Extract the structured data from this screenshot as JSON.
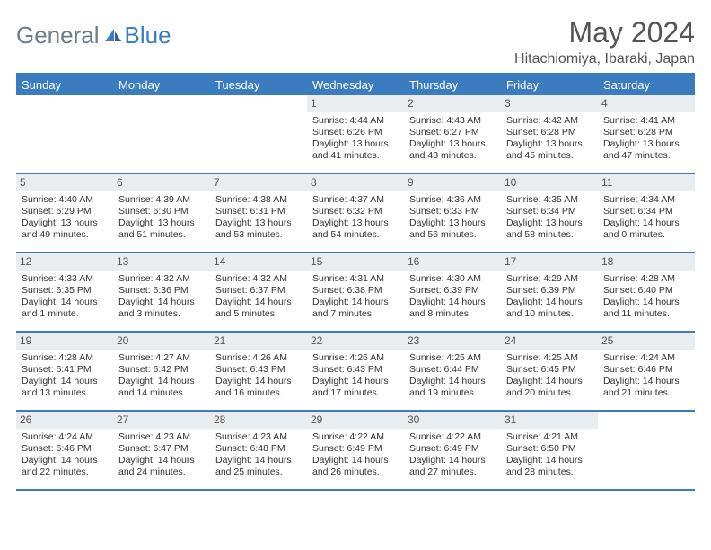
{
  "logo": {
    "part1": "General",
    "part2": "Blue"
  },
  "title": "May 2024",
  "location": "Hitachiomiya, Ibaraki, Japan",
  "colors": {
    "header_bar": "#3b7bbf",
    "dow_text": "#ffffff",
    "daynum_bg": "#e9edf0",
    "rule": "#3b7bbf",
    "body_text": "#333333",
    "title_text": "#555555",
    "logo_grey": "#6b7c8c",
    "logo_blue": "#3b7bbf",
    "background": "#ffffff"
  },
  "typography": {
    "month_title_pt": 32,
    "location_pt": 16,
    "dow_pt": 13,
    "daynum_pt": 12,
    "body_pt": 10.5,
    "logo_pt": 26
  },
  "days_of_week": [
    "Sunday",
    "Monday",
    "Tuesday",
    "Wednesday",
    "Thursday",
    "Friday",
    "Saturday"
  ],
  "weeks": [
    [
      {
        "n": "",
        "sr": "",
        "ss": "",
        "dl": ""
      },
      {
        "n": "",
        "sr": "",
        "ss": "",
        "dl": ""
      },
      {
        "n": "",
        "sr": "",
        "ss": "",
        "dl": ""
      },
      {
        "n": "1",
        "sr": "Sunrise: 4:44 AM",
        "ss": "Sunset: 6:26 PM",
        "dl": "Daylight: 13 hours and 41 minutes."
      },
      {
        "n": "2",
        "sr": "Sunrise: 4:43 AM",
        "ss": "Sunset: 6:27 PM",
        "dl": "Daylight: 13 hours and 43 minutes."
      },
      {
        "n": "3",
        "sr": "Sunrise: 4:42 AM",
        "ss": "Sunset: 6:28 PM",
        "dl": "Daylight: 13 hours and 45 minutes."
      },
      {
        "n": "4",
        "sr": "Sunrise: 4:41 AM",
        "ss": "Sunset: 6:28 PM",
        "dl": "Daylight: 13 hours and 47 minutes."
      }
    ],
    [
      {
        "n": "5",
        "sr": "Sunrise: 4:40 AM",
        "ss": "Sunset: 6:29 PM",
        "dl": "Daylight: 13 hours and 49 minutes."
      },
      {
        "n": "6",
        "sr": "Sunrise: 4:39 AM",
        "ss": "Sunset: 6:30 PM",
        "dl": "Daylight: 13 hours and 51 minutes."
      },
      {
        "n": "7",
        "sr": "Sunrise: 4:38 AM",
        "ss": "Sunset: 6:31 PM",
        "dl": "Daylight: 13 hours and 53 minutes."
      },
      {
        "n": "8",
        "sr": "Sunrise: 4:37 AM",
        "ss": "Sunset: 6:32 PM",
        "dl": "Daylight: 13 hours and 54 minutes."
      },
      {
        "n": "9",
        "sr": "Sunrise: 4:36 AM",
        "ss": "Sunset: 6:33 PM",
        "dl": "Daylight: 13 hours and 56 minutes."
      },
      {
        "n": "10",
        "sr": "Sunrise: 4:35 AM",
        "ss": "Sunset: 6:34 PM",
        "dl": "Daylight: 13 hours and 58 minutes."
      },
      {
        "n": "11",
        "sr": "Sunrise: 4:34 AM",
        "ss": "Sunset: 6:34 PM",
        "dl": "Daylight: 14 hours and 0 minutes."
      }
    ],
    [
      {
        "n": "12",
        "sr": "Sunrise: 4:33 AM",
        "ss": "Sunset: 6:35 PM",
        "dl": "Daylight: 14 hours and 1 minute."
      },
      {
        "n": "13",
        "sr": "Sunrise: 4:32 AM",
        "ss": "Sunset: 6:36 PM",
        "dl": "Daylight: 14 hours and 3 minutes."
      },
      {
        "n": "14",
        "sr": "Sunrise: 4:32 AM",
        "ss": "Sunset: 6:37 PM",
        "dl": "Daylight: 14 hours and 5 minutes."
      },
      {
        "n": "15",
        "sr": "Sunrise: 4:31 AM",
        "ss": "Sunset: 6:38 PM",
        "dl": "Daylight: 14 hours and 7 minutes."
      },
      {
        "n": "16",
        "sr": "Sunrise: 4:30 AM",
        "ss": "Sunset: 6:39 PM",
        "dl": "Daylight: 14 hours and 8 minutes."
      },
      {
        "n": "17",
        "sr": "Sunrise: 4:29 AM",
        "ss": "Sunset: 6:39 PM",
        "dl": "Daylight: 14 hours and 10 minutes."
      },
      {
        "n": "18",
        "sr": "Sunrise: 4:28 AM",
        "ss": "Sunset: 6:40 PM",
        "dl": "Daylight: 14 hours and 11 minutes."
      }
    ],
    [
      {
        "n": "19",
        "sr": "Sunrise: 4:28 AM",
        "ss": "Sunset: 6:41 PM",
        "dl": "Daylight: 14 hours and 13 minutes."
      },
      {
        "n": "20",
        "sr": "Sunrise: 4:27 AM",
        "ss": "Sunset: 6:42 PM",
        "dl": "Daylight: 14 hours and 14 minutes."
      },
      {
        "n": "21",
        "sr": "Sunrise: 4:26 AM",
        "ss": "Sunset: 6:43 PM",
        "dl": "Daylight: 14 hours and 16 minutes."
      },
      {
        "n": "22",
        "sr": "Sunrise: 4:26 AM",
        "ss": "Sunset: 6:43 PM",
        "dl": "Daylight: 14 hours and 17 minutes."
      },
      {
        "n": "23",
        "sr": "Sunrise: 4:25 AM",
        "ss": "Sunset: 6:44 PM",
        "dl": "Daylight: 14 hours and 19 minutes."
      },
      {
        "n": "24",
        "sr": "Sunrise: 4:25 AM",
        "ss": "Sunset: 6:45 PM",
        "dl": "Daylight: 14 hours and 20 minutes."
      },
      {
        "n": "25",
        "sr": "Sunrise: 4:24 AM",
        "ss": "Sunset: 6:46 PM",
        "dl": "Daylight: 14 hours and 21 minutes."
      }
    ],
    [
      {
        "n": "26",
        "sr": "Sunrise: 4:24 AM",
        "ss": "Sunset: 6:46 PM",
        "dl": "Daylight: 14 hours and 22 minutes."
      },
      {
        "n": "27",
        "sr": "Sunrise: 4:23 AM",
        "ss": "Sunset: 6:47 PM",
        "dl": "Daylight: 14 hours and 24 minutes."
      },
      {
        "n": "28",
        "sr": "Sunrise: 4:23 AM",
        "ss": "Sunset: 6:48 PM",
        "dl": "Daylight: 14 hours and 25 minutes."
      },
      {
        "n": "29",
        "sr": "Sunrise: 4:22 AM",
        "ss": "Sunset: 6:49 PM",
        "dl": "Daylight: 14 hours and 26 minutes."
      },
      {
        "n": "30",
        "sr": "Sunrise: 4:22 AM",
        "ss": "Sunset: 6:49 PM",
        "dl": "Daylight: 14 hours and 27 minutes."
      },
      {
        "n": "31",
        "sr": "Sunrise: 4:21 AM",
        "ss": "Sunset: 6:50 PM",
        "dl": "Daylight: 14 hours and 28 minutes."
      },
      {
        "n": "",
        "sr": "",
        "ss": "",
        "dl": ""
      }
    ]
  ]
}
